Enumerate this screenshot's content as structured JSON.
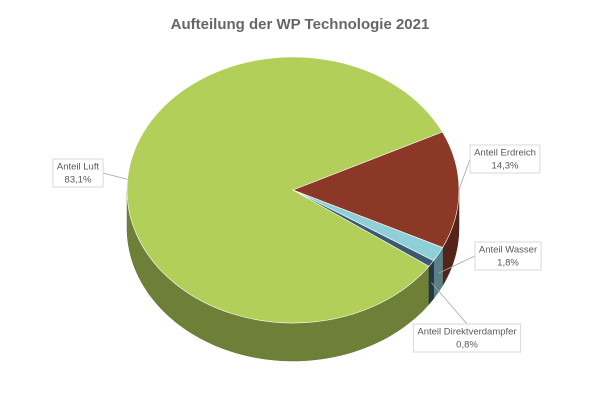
{
  "chart_data": {
    "type": "pie3d",
    "title": "Aufteilung der WP Technologie 2021",
    "categories": [
      "Anteil Luft",
      "Anteil Erdreich",
      "Anteil Wasser",
      "Anteil Direktverdampfer"
    ],
    "values": [
      83.1,
      14.3,
      1.8,
      0.8
    ],
    "value_labels": [
      "83,1%",
      "14,3%",
      "1,8%",
      "0,8%"
    ],
    "colors": [
      "#b2cf59",
      "#8b3826",
      "#8fd0d8",
      "#3b5a70"
    ]
  }
}
